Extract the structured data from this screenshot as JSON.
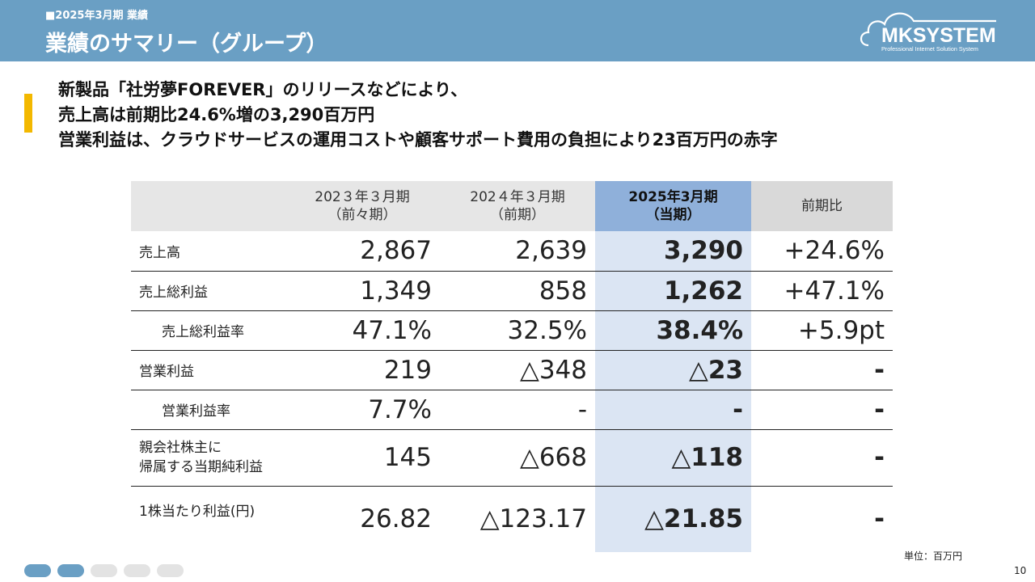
{
  "header": {
    "section": "■2025年3月期 業績",
    "title": "業績のサマリー（グループ）"
  },
  "logo": {
    "brand": "MKSYSTEM",
    "tagline": "Professional Internet Solution System"
  },
  "lead": [
    "新製品「社労夢FOREVER」のリリースなどにより、",
    "売上高は前期比24.6%増の3,290百万円",
    "営業利益は、クラウドサービスの運用コストや顧客サポート費用の負担により23百万円の赤字"
  ],
  "table": {
    "headers": [
      {
        "line1": "",
        "line2": ""
      },
      {
        "line1": "202３年３月期",
        "line2": "（前々期）"
      },
      {
        "line1": "202４年３月期",
        "line2": "（前期）"
      },
      {
        "line1": "2025年3月期",
        "line2": "（当期）"
      },
      {
        "line1": "前期比",
        "line2": ""
      }
    ],
    "rows": [
      {
        "label": "売上高",
        "label2": "",
        "values": [
          "2,867",
          "2,639",
          "3,290",
          "+24.6%"
        ]
      },
      {
        "label": "売上総利益",
        "label2": "",
        "values": [
          "1,349",
          "858",
          "1,262",
          "+47.1%"
        ]
      },
      {
        "label": "売上総利益率",
        "label2": "",
        "values": [
          "47.1%",
          "32.5%",
          "38.4%",
          "+5.9pt"
        ]
      },
      {
        "label": "営業利益",
        "label2": "",
        "values": [
          "219",
          "△348",
          "△23",
          "-"
        ]
      },
      {
        "label": "営業利益率",
        "label2": "",
        "values": [
          "7.7%",
          "-",
          "-",
          "-"
        ]
      },
      {
        "label": "親会社株主に",
        "label2": "帰属する当期純利益",
        "values": [
          "145",
          "△668",
          "△118",
          "-"
        ]
      },
      {
        "label": "1株当たり利益(円)",
        "label2": "",
        "values": [
          "26.82",
          "△123.17",
          "△21.85",
          "-"
        ]
      }
    ]
  },
  "unit": "単位：百万円",
  "page_number": "10",
  "pagination": {
    "dots": [
      {
        "active": true
      },
      {
        "active": true
      },
      {
        "active": false
      },
      {
        "active": false
      },
      {
        "active": false
      }
    ],
    "colors": {
      "active": "#6a9fc4",
      "inactive": "#e3e3e3"
    }
  }
}
